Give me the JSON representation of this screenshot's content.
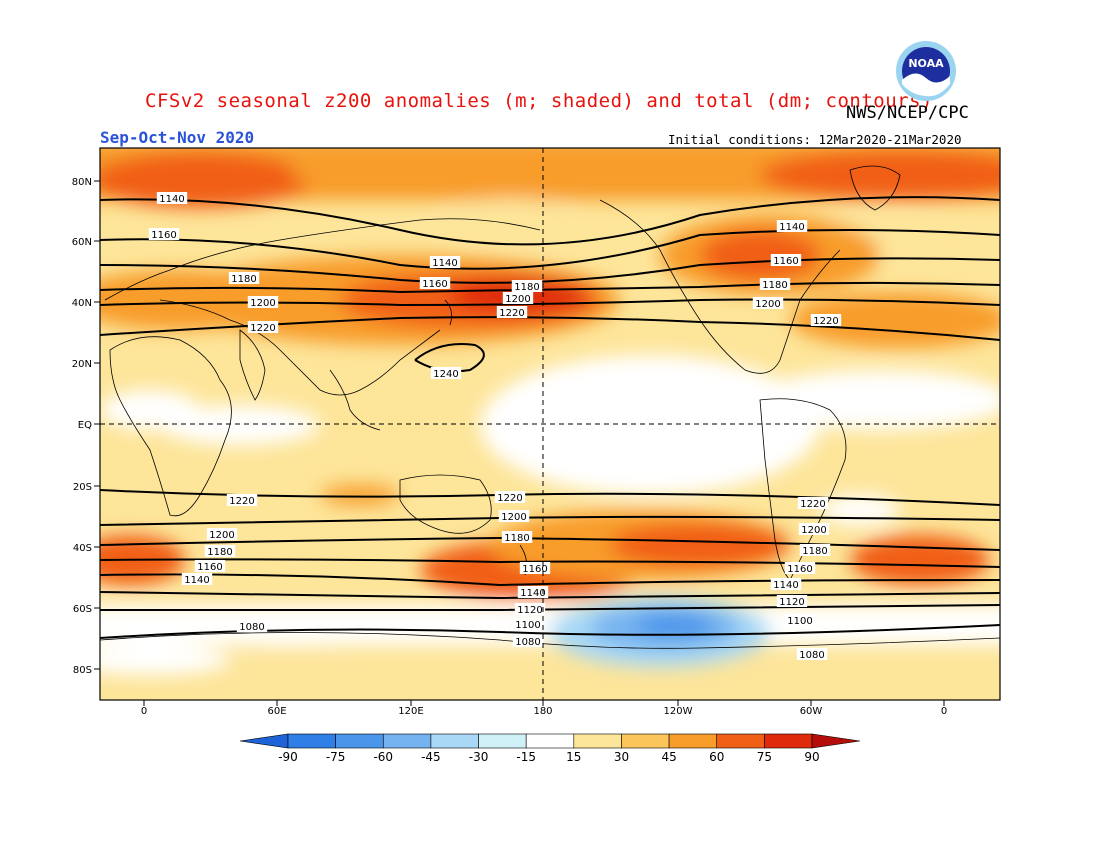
{
  "header": {
    "title": "CFSv2 seasonal z200 anomalies (m; shaded) and total (dm; contours)",
    "org": "NWS/NCEP/CPC",
    "season": "Sep-Oct-Nov 2020",
    "initial_conditions": "Initial conditions: 12Mar2020-21Mar2020",
    "logo_text": "NOAA"
  },
  "axes": {
    "lat_labels": [
      "80N",
      "60N",
      "40N",
      "20N",
      "EQ",
      "20S",
      "40S",
      "60S",
      "80S"
    ],
    "lon_labels": [
      "0",
      "60E",
      "120E",
      "180",
      "120W",
      "60W",
      "0"
    ]
  },
  "colorbar": {
    "ticks": [
      "-90",
      "-75",
      "-60",
      "-45",
      "-30",
      "-15",
      "15",
      "30",
      "45",
      "60",
      "75",
      "90"
    ],
    "colors": [
      "#1e64d8",
      "#2f7fe6",
      "#4b95ea",
      "#74b3f0",
      "#a8d8f5",
      "#cff0f7",
      "#ffffff",
      "#fde59a",
      "#fbc55a",
      "#f89c2c",
      "#f15f17",
      "#e02a0c",
      "#b50e0a"
    ]
  },
  "contours": {
    "labels": [
      "1140",
      "1160",
      "1180",
      "1200",
      "1220",
      "1240",
      "1120",
      "1100",
      "1080"
    ]
  },
  "colors": {
    "title_red": "#e8120c",
    "season_blue": "#2a53d8",
    "land_outline": "#000000"
  }
}
